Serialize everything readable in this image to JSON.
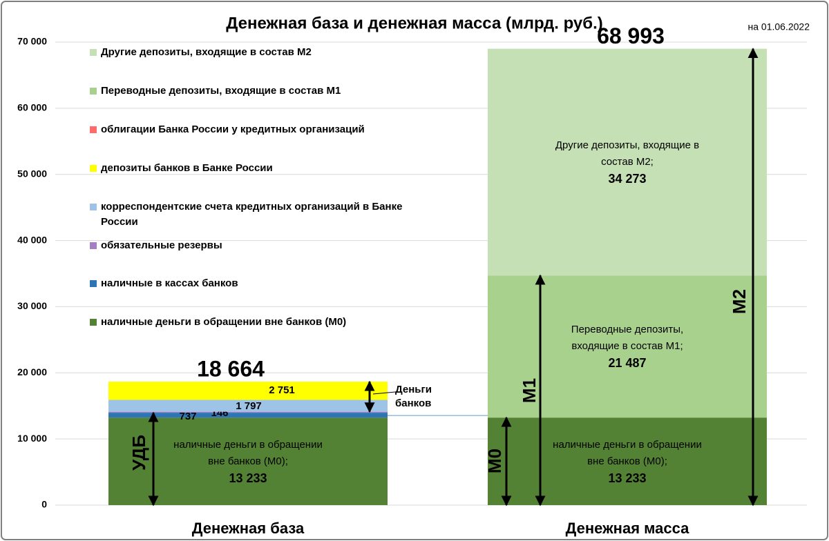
{
  "chart_data": {
    "type": "stacked_bar",
    "title": "Денежная база и денежная масса (млрд. руб.)",
    "subtitle": "на 01.06.2022",
    "categories": [
      "Денежная база",
      "Денежная масса"
    ],
    "ylim": [
      0,
      70000
    ],
    "yticks": [
      0,
      {
        "value": 10000,
        "label": "10 000"
      },
      {
        "value": 20000,
        "label": "20 000"
      },
      {
        "value": 30000,
        "label": "30 000"
      },
      {
        "value": 40000,
        "label": "40 000"
      },
      {
        "value": 50000,
        "label": "50 000"
      },
      {
        "value": 60000,
        "label": "60 000"
      },
      {
        "value": 70000,
        "label": "70 000"
      }
    ],
    "grid": true,
    "series": [
      {
        "name": "наличные деньги в обращении вне банков (М0)",
        "color": "#548235",
        "values": [
          13233,
          13233
        ],
        "value_labels": [
          "13 233",
          "13 233"
        ],
        "segment_text": [
          "наличные деньги в обращении вне банков (М0);",
          "наличные деньги в обращении вне банков (М0);"
        ]
      },
      {
        "name": "наличные в кассах банков",
        "color": "#2e75b6",
        "values": [
          737,
          null
        ]
      },
      {
        "name": "обязательные резервы",
        "color": "#a57fc4",
        "values": [
          146,
          null
        ]
      },
      {
        "name": "корреспондентские счета кредитных организаций в Банке России",
        "color": "#9dc3e6",
        "values": [
          1797,
          null
        ],
        "value_labels": [
          "1 797",
          null
        ]
      },
      {
        "name": "депозиты банков в Банке России",
        "color": "#ffff00",
        "values": [
          2751,
          null
        ],
        "value_labels": [
          "2 751",
          null
        ]
      },
      {
        "name": "облигации Банка России у кредитных организаций",
        "color": "#ff6b6b",
        "values": [
          0,
          null
        ]
      },
      {
        "name": "Переводные депозиты, входящие в состав М1",
        "color": "#a9d18e",
        "values": [
          null,
          21487
        ],
        "value_labels": [
          null,
          "21 487"
        ],
        "segment_text": [
          null,
          "Переводные депозиты, входящие в состав М1;"
        ]
      },
      {
        "name": "Другие депозиты, входящие в состав М2",
        "color": "#c5e0b4",
        "values": [
          null,
          34273
        ],
        "value_labels": [
          null,
          "34 273"
        ],
        "segment_text": [
          null,
          "Другие депозиты, входящие в состав М2;"
        ]
      }
    ],
    "totals": [
      18664,
      68993
    ],
    "total_labels": [
      "18 664",
      "68 993"
    ],
    "annotations": [
      "УДБ",
      "Деньги банков",
      "М0",
      "М1",
      "М2"
    ]
  }
}
